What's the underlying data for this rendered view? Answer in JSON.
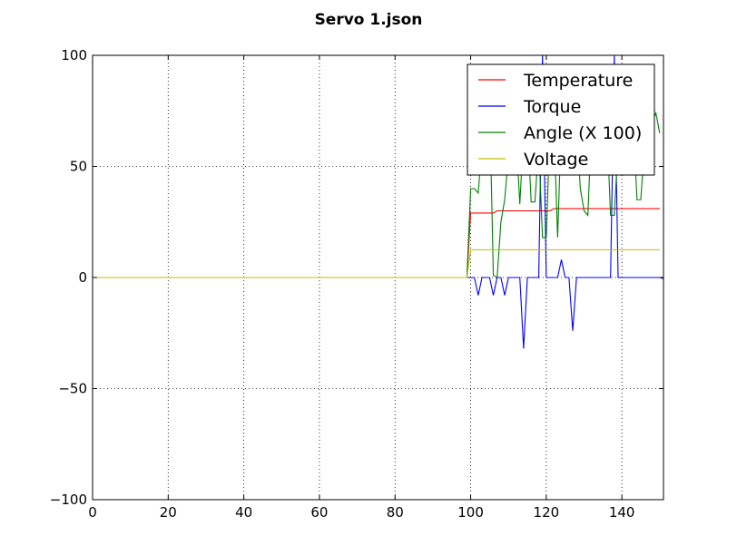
{
  "chart_data": {
    "type": "line",
    "title": "Servo 1.json",
    "xlabel": "",
    "ylabel": "",
    "xlim": [
      0,
      151
    ],
    "ylim": [
      -100,
      100
    ],
    "xticks": [
      0,
      20,
      40,
      60,
      80,
      100,
      120,
      140
    ],
    "yticks": [
      -100,
      -50,
      0,
      50,
      100
    ],
    "xtick_labels": [
      "0",
      "20",
      "40",
      "60",
      "80",
      "100",
      "120",
      "140"
    ],
    "ytick_labels": [
      "−100",
      "−50",
      "0",
      "50",
      "100"
    ],
    "grid": true,
    "legend_position": "top-right",
    "series": [
      {
        "name": "Temperature",
        "color": "#ff0000",
        "x": [
          0,
          99,
          100,
          106,
          107,
          120,
          121,
          122,
          123,
          150
        ],
        "y": [
          0,
          0,
          29,
          29,
          30,
          30,
          30,
          31,
          31,
          31
        ]
      },
      {
        "name": "Torque",
        "color": "#0000ff",
        "x": [
          0,
          99,
          100,
          101,
          102,
          103,
          104,
          105,
          106,
          107,
          108,
          109,
          110,
          111,
          112,
          113,
          114,
          115,
          116,
          117,
          118,
          119,
          120,
          121,
          122,
          123,
          124,
          125,
          126,
          127,
          128,
          129,
          130,
          131,
          132,
          133,
          134,
          135,
          136,
          137,
          138,
          139,
          140,
          141,
          142,
          143,
          144,
          145,
          146,
          147,
          148,
          149,
          150,
          151
        ],
        "y": [
          0,
          0,
          0,
          0,
          -8,
          0,
          0,
          0,
          -8,
          0,
          0,
          -8,
          0,
          0,
          0,
          0,
          -32,
          0,
          0,
          0,
          0,
          100,
          0,
          0,
          0,
          0,
          8,
          0,
          0,
          -24,
          0,
          0,
          0,
          0,
          0,
          0,
          0,
          0,
          0,
          0,
          100,
          0,
          0,
          0,
          0,
          0,
          0,
          0,
          0,
          0,
          0,
          0,
          0,
          -0.5
        ]
      },
      {
        "name": "Angle (X 100)",
        "color": "#008000",
        "x": [
          0,
          99,
          100,
          101,
          102,
          103,
          104,
          105,
          106,
          107,
          108,
          109,
          110,
          111,
          112,
          113,
          114,
          115,
          116,
          117,
          118,
          119,
          120,
          121,
          122,
          123,
          124,
          125,
          126,
          127,
          128,
          129,
          130,
          131,
          132,
          133,
          134,
          135,
          136,
          137,
          138,
          139,
          140,
          141,
          142,
          143,
          144,
          145,
          146,
          147,
          148,
          149,
          150
        ],
        "y": [
          0,
          0,
          40,
          40,
          38,
          60,
          75,
          80,
          1,
          0,
          25,
          35,
          55,
          70,
          65,
          33,
          65,
          70,
          34,
          34,
          60,
          18,
          18,
          70,
          70,
          18,
          70,
          70,
          70,
          70,
          70,
          40,
          30,
          28,
          70,
          70,
          70,
          70,
          70,
          28,
          28,
          60,
          70,
          70,
          70,
          70,
          35,
          35,
          60,
          70,
          70,
          74,
          65
        ]
      },
      {
        "name": "Voltage",
        "color": "#bfbf00",
        "x": [
          0,
          99,
          100,
          150
        ],
        "y": [
          0,
          0,
          12.5,
          12.5
        ]
      }
    ]
  }
}
